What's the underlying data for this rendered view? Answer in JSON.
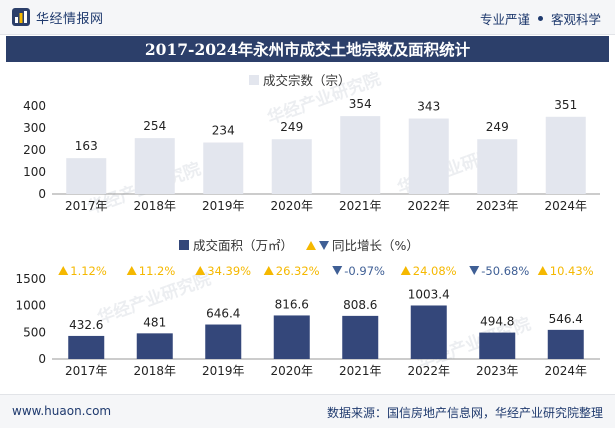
{
  "header": {
    "logo_text": "华经情报网",
    "tagline_left": "专业严谨",
    "tagline_right": "客观科学"
  },
  "title": "2017-2024年永州市成交土地宗数及面积统计",
  "footer": {
    "site": "www.huaon.com",
    "source": "数据来源：国信房地产信息网，华经产业研究院整理"
  },
  "watermark": "华经产业研究院",
  "colors": {
    "title_bg": "#2c3f6a",
    "bar_count": "#e3e6ee",
    "bar_area": "#34477a",
    "up": "#f5b800",
    "down": "#3f5f95"
  },
  "chart_data": [
    {
      "type": "bar",
      "legend": "成交宗数（宗）",
      "categories": [
        "2017年",
        "2018年",
        "2019年",
        "2020年",
        "2021年",
        "2022年",
        "2023年",
        "2024年"
      ],
      "values": [
        163,
        254,
        234,
        249,
        354,
        343,
        249,
        351
      ],
      "ylim": [
        0,
        400
      ],
      "yticks": [
        "0",
        "100",
        "200",
        "300",
        "400"
      ]
    },
    {
      "type": "bar",
      "legend_bar": "成交面积（万㎡）",
      "legend_yoy": "同比增长（%）",
      "categories": [
        "2017年",
        "2018年",
        "2019年",
        "2020年",
        "2021年",
        "2022年",
        "2023年",
        "2024年"
      ],
      "values": [
        432.6,
        481,
        646.4,
        816.6,
        808.6,
        1003.4,
        494.8,
        546.4
      ],
      "value_labels": [
        "432.6",
        "481",
        "646.4",
        "816.6",
        "808.6",
        "1003.4",
        "494.8",
        "546.4"
      ],
      "yoy": [
        1.12,
        11.2,
        34.39,
        26.32,
        -0.97,
        24.08,
        -50.68,
        10.43
      ],
      "yoy_labels": [
        "1.12%",
        "11.2%",
        "34.39%",
        "26.32%",
        "-0.97%",
        "24.08%",
        "-50.68%",
        "10.43%"
      ],
      "ylim": [
        0,
        1500
      ],
      "yticks": [
        "0",
        "500",
        "1000",
        "1500"
      ]
    }
  ]
}
